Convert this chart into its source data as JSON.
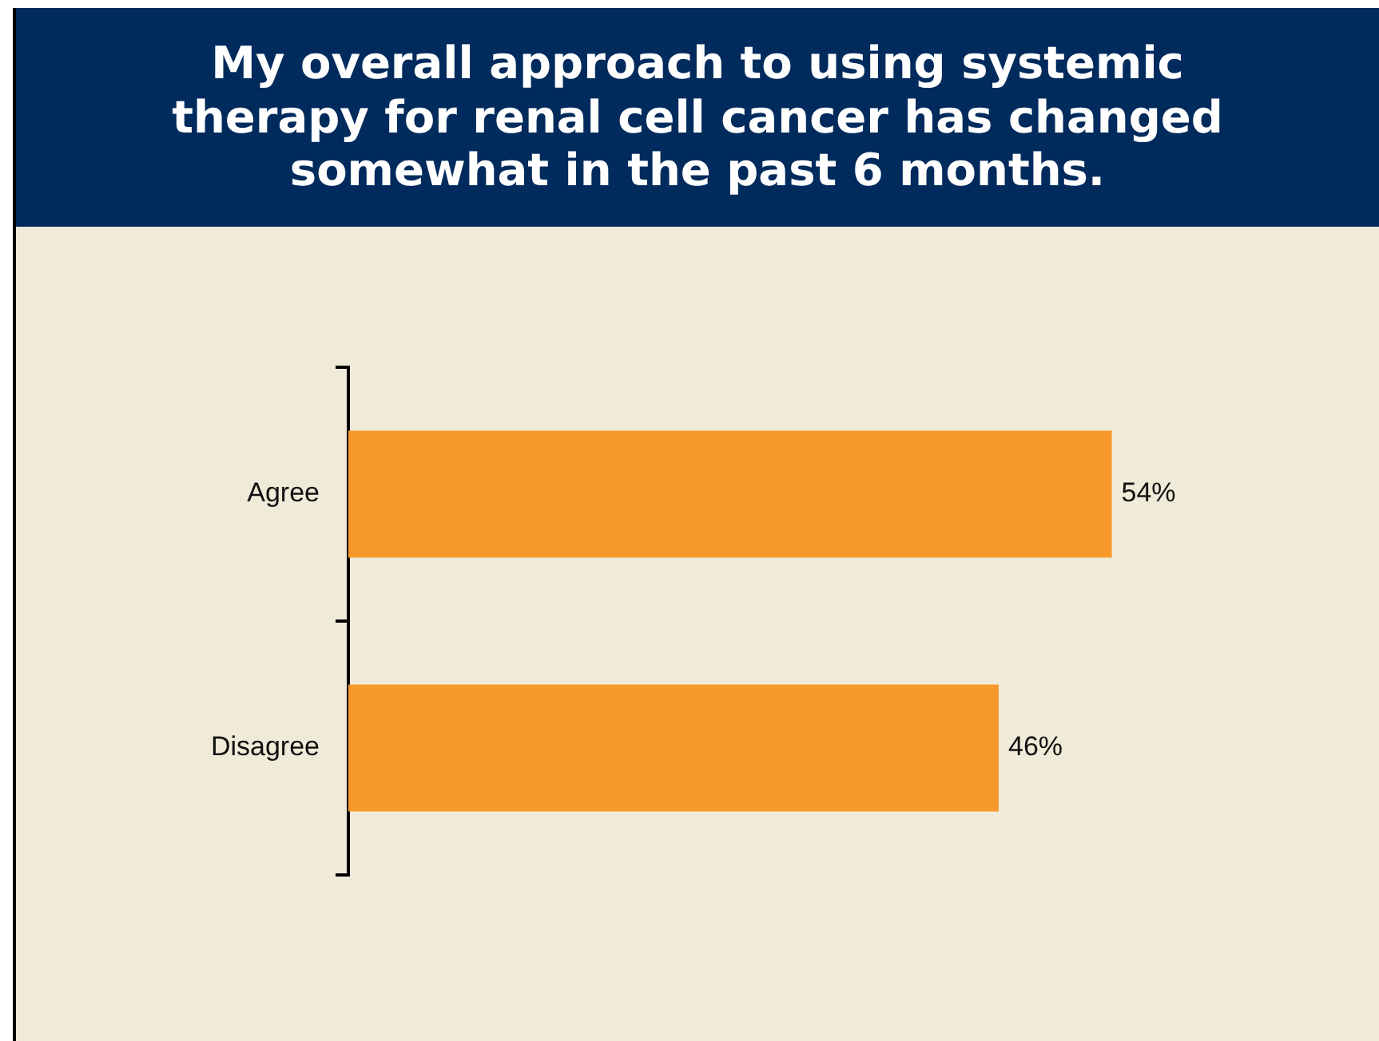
{
  "chart_data": {
    "type": "bar",
    "orientation": "horizontal",
    "title": "My overall approach to using systemic therapy for renal cell cancer has changed somewhat in the past 6 months.",
    "categories": [
      "Agree",
      "Disagree"
    ],
    "values": [
      54,
      46
    ],
    "value_labels": [
      "54%",
      "46%"
    ],
    "color": "#f7992a",
    "tick_labels": "y",
    "grid": false,
    "legend": false
  }
}
